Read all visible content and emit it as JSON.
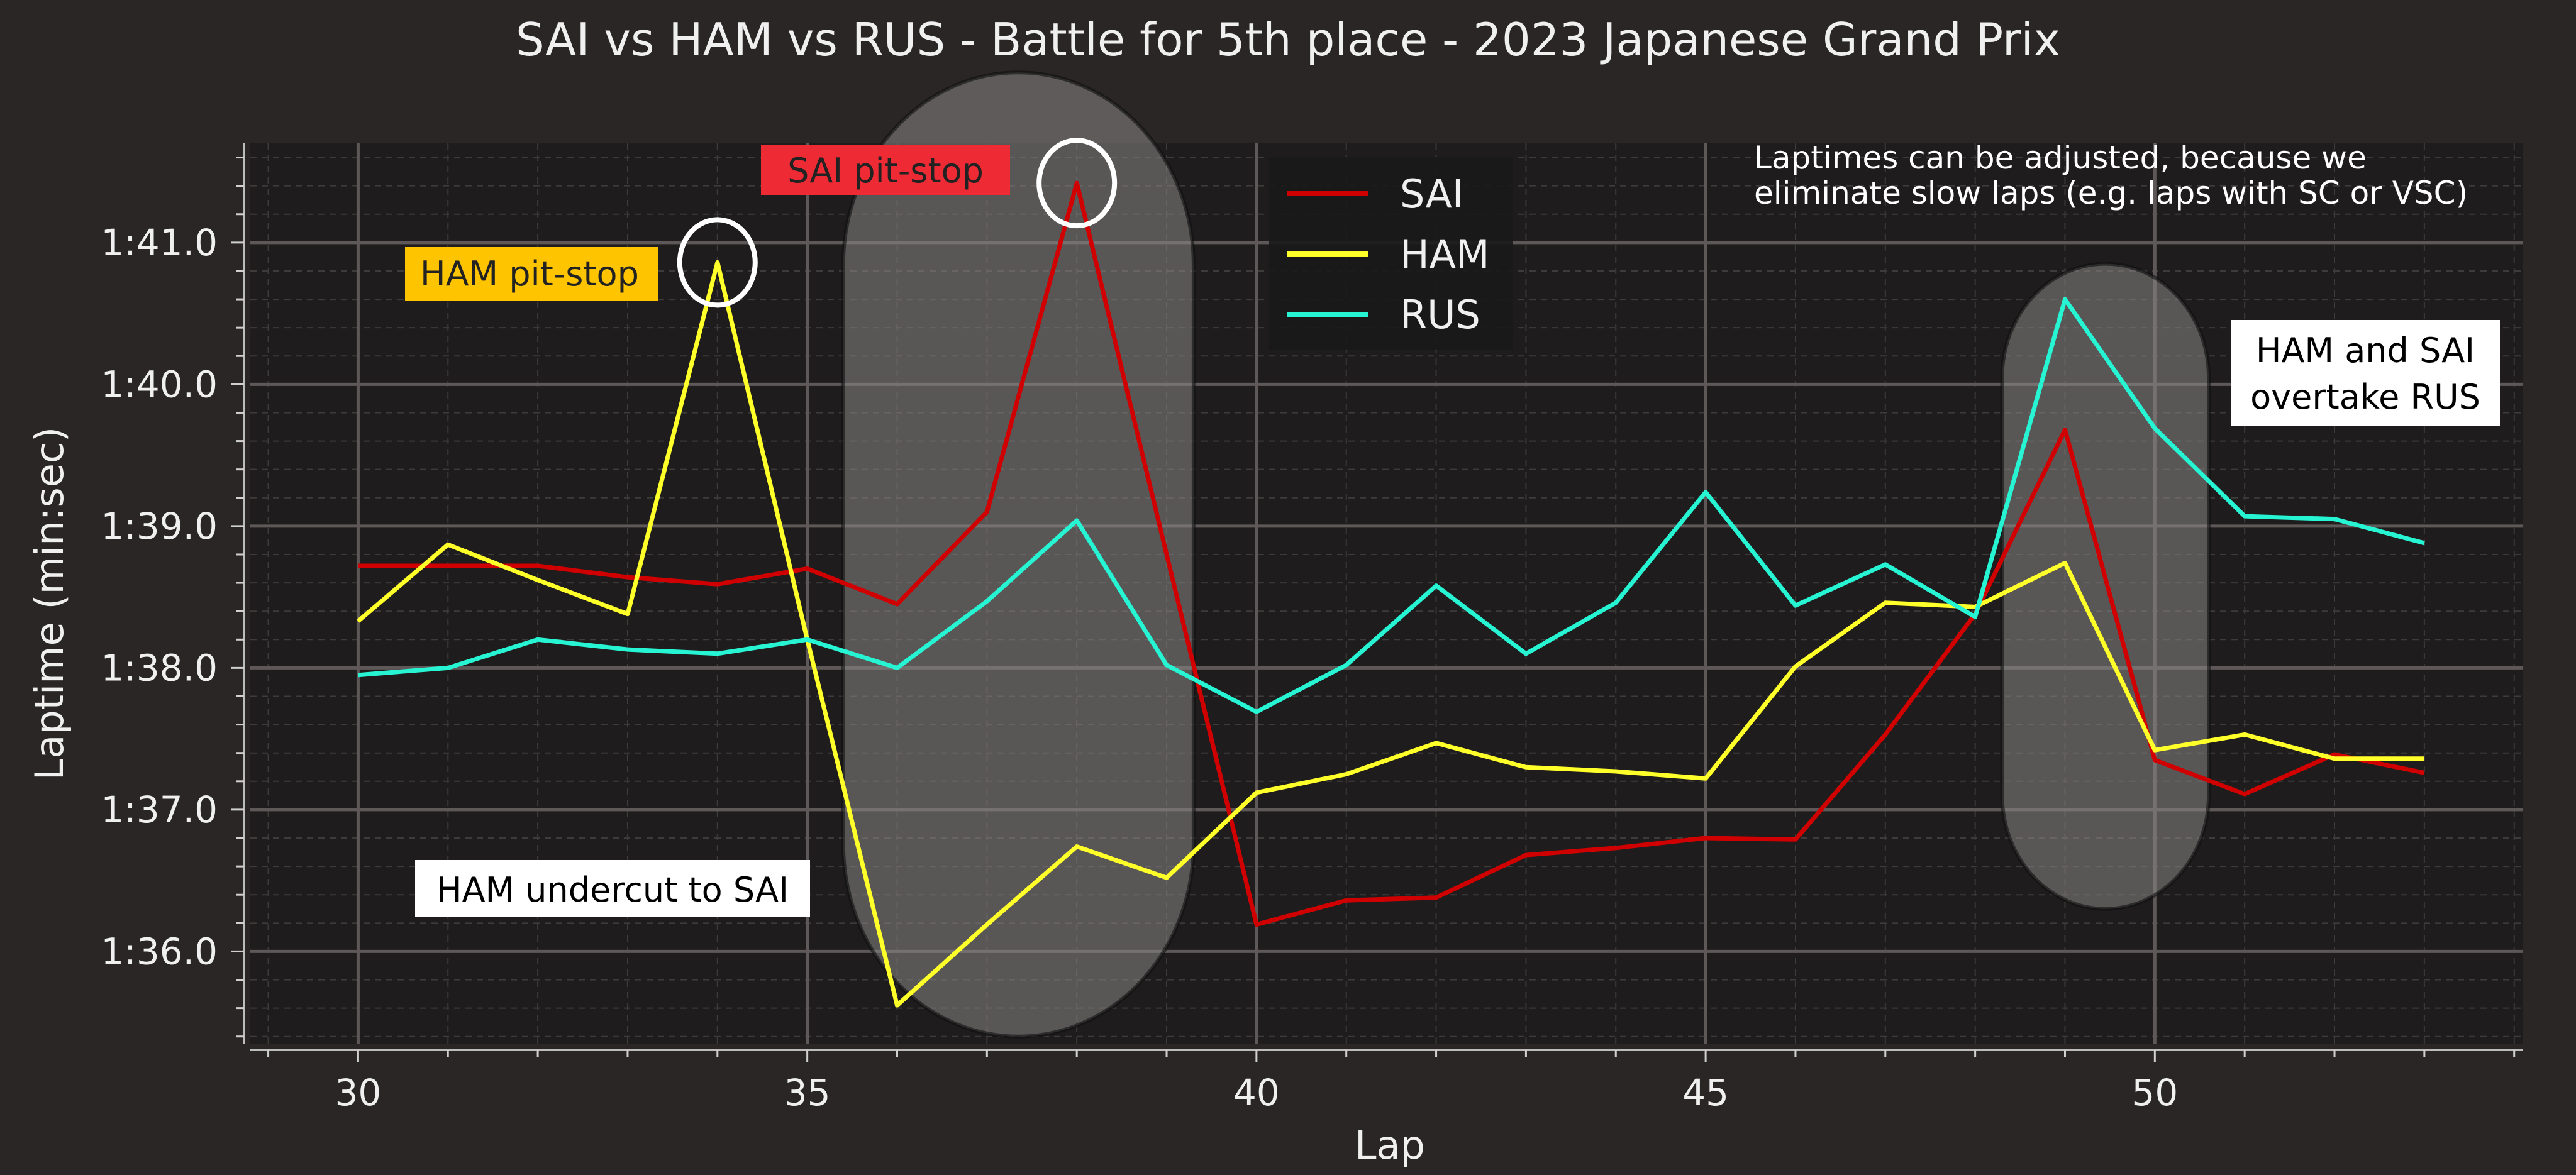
{
  "chart_data": {
    "type": "line",
    "title": "SAI vs HAM vs RUS - Battle for 5th place - 2023 Japanese Grand Prix",
    "xlabel": "Lap",
    "ylabel": "Laptime (min:sec)",
    "xlim": [
      28.8,
      54.1
    ],
    "ylim": [
      95.35,
      101.7
    ],
    "x_ticks": [
      30,
      35,
      40,
      45,
      50
    ],
    "y_ticks": [
      96,
      97,
      98,
      99,
      100,
      101
    ],
    "y_tick_labels": [
      "1:36.0",
      "1:37.0",
      "1:38.0",
      "1:39.0",
      "1:40.0",
      "1:41.0"
    ],
    "grid": true,
    "legend_position": "top-center",
    "series": [
      {
        "name": "SAI",
        "color": "#d10000",
        "x": [
          30,
          31,
          32,
          33,
          34,
          35,
          36,
          37,
          38,
          39,
          40,
          41,
          42,
          43,
          44,
          45,
          46,
          47,
          48,
          49,
          50,
          51,
          52,
          53
        ],
        "values": [
          98.72,
          98.72,
          98.72,
          98.64,
          98.59,
          98.7,
          98.45,
          99.1,
          101.42,
          98.8,
          96.19,
          96.36,
          96.38,
          96.68,
          96.73,
          96.8,
          96.79,
          97.53,
          98.38,
          99.68,
          97.35,
          97.11,
          97.39,
          97.26
        ]
      },
      {
        "name": "HAM",
        "color": "#ffff2a",
        "x": [
          30,
          31,
          32,
          33,
          34,
          35,
          36,
          37,
          38,
          39,
          40,
          41,
          42,
          43,
          44,
          45,
          46,
          47,
          48,
          49,
          50,
          51,
          52,
          53
        ],
        "values": [
          98.33,
          98.87,
          98.62,
          98.38,
          100.86,
          98.2,
          95.62,
          96.19,
          96.74,
          96.52,
          97.12,
          97.25,
          97.47,
          97.3,
          97.27,
          97.22,
          98.01,
          98.46,
          98.43,
          98.74,
          97.42,
          97.53,
          97.36,
          97.36
        ]
      },
      {
        "name": "RUS",
        "color": "#27f4d2",
        "x": [
          30,
          31,
          32,
          33,
          34,
          35,
          36,
          37,
          38,
          39,
          40,
          41,
          42,
          43,
          44,
          45,
          46,
          47,
          48,
          49,
          50,
          51,
          52,
          53
        ],
        "values": [
          97.95,
          98.0,
          98.2,
          98.13,
          98.1,
          98.2,
          98.0,
          98.47,
          99.04,
          98.02,
          97.69,
          98.02,
          98.58,
          98.1,
          98.46,
          99.24,
          98.44,
          98.73,
          98.36,
          100.6,
          99.69,
          99.07,
          99.05,
          98.88
        ]
      }
    ],
    "highlights": [
      {
        "x_range": [
          35.4,
          39.3
        ],
        "y_range": [
          95.4,
          102.2
        ]
      },
      {
        "x_range": [
          48.3,
          50.6
        ],
        "y_range": [
          96.3,
          100.85
        ]
      }
    ],
    "markers": [
      {
        "x": 34,
        "y": 100.86
      },
      {
        "x": 38,
        "y": 101.42
      }
    ],
    "annotations": [
      {
        "text": "HAM pit-stop",
        "bg": "#ffc400",
        "fg": "#222222"
      },
      {
        "text": "SAI pit-stop",
        "bg": "#ee2b35",
        "fg": "#222222"
      },
      {
        "text": "HAM undercut to SAI",
        "bg": "#ffffff",
        "fg": "#000000"
      },
      {
        "lines": [
          "HAM and SAI",
          "overtake RUS"
        ],
        "bg": "#ffffff",
        "fg": "#000000"
      },
      {
        "lines": [
          "Laptimes can be adjusted, because we",
          "eliminate slow laps (e.g. laps with SC or VSC)"
        ],
        "fg": "#ffffff"
      }
    ]
  }
}
